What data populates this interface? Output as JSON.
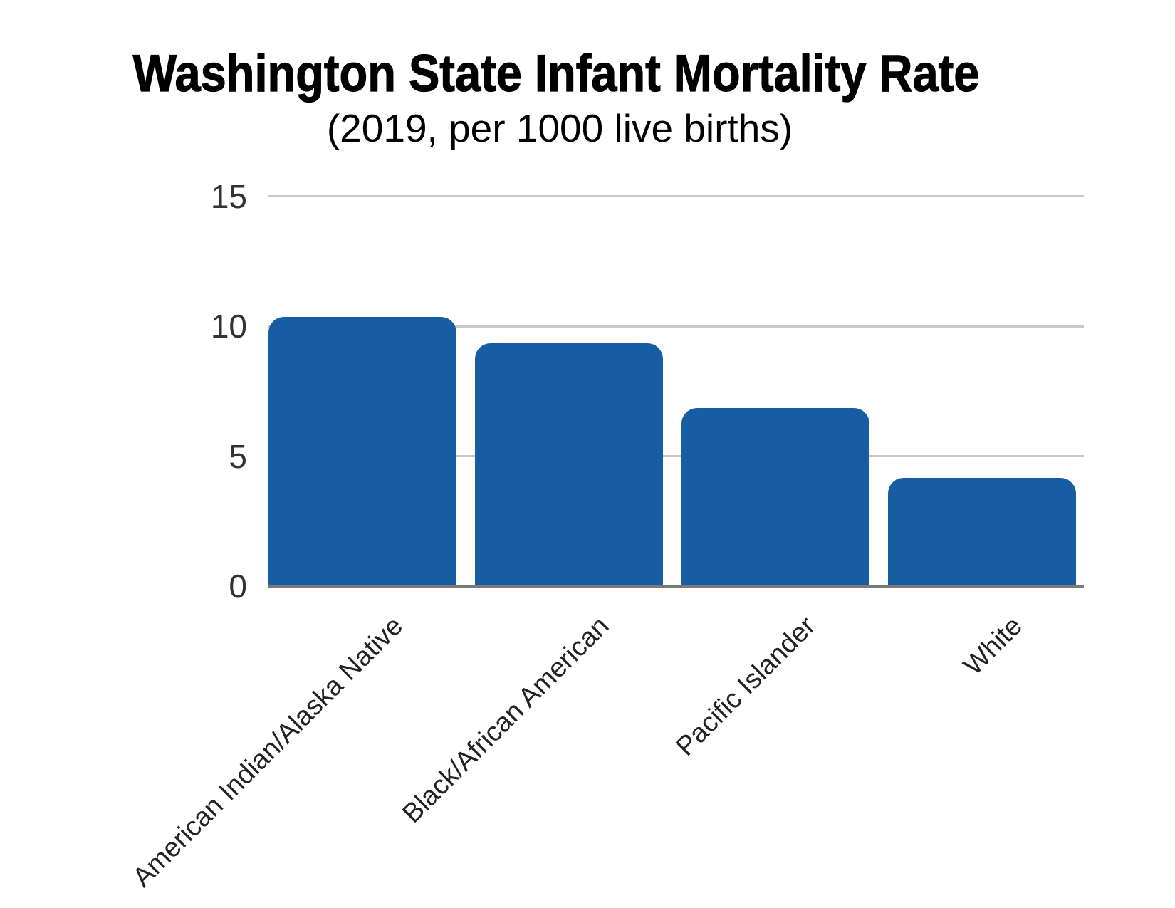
{
  "chart_data": {
    "type": "bar",
    "title": "Washington State Infant Mortality Rate",
    "subtitle": "(2019, per 1000 live births)",
    "categories": [
      "American Indian/Alaska Native",
      "Black/African American",
      "Pacific Islander",
      "White"
    ],
    "values": [
      10.3,
      9.3,
      6.8,
      4.1
    ],
    "xlabel": "",
    "ylabel": "",
    "ylim": [
      0,
      15
    ],
    "yticks": [
      0,
      5,
      10,
      15
    ],
    "grid": "horizontal",
    "legend": "none",
    "bar_color": "#175da4",
    "grid_color": "#c9c9c9",
    "axis_line_color": "#7a7a7a",
    "tick_label_color": "#333333",
    "category_label_color": "#222222",
    "title_color": "#000000",
    "background_color": "#ffffff"
  }
}
